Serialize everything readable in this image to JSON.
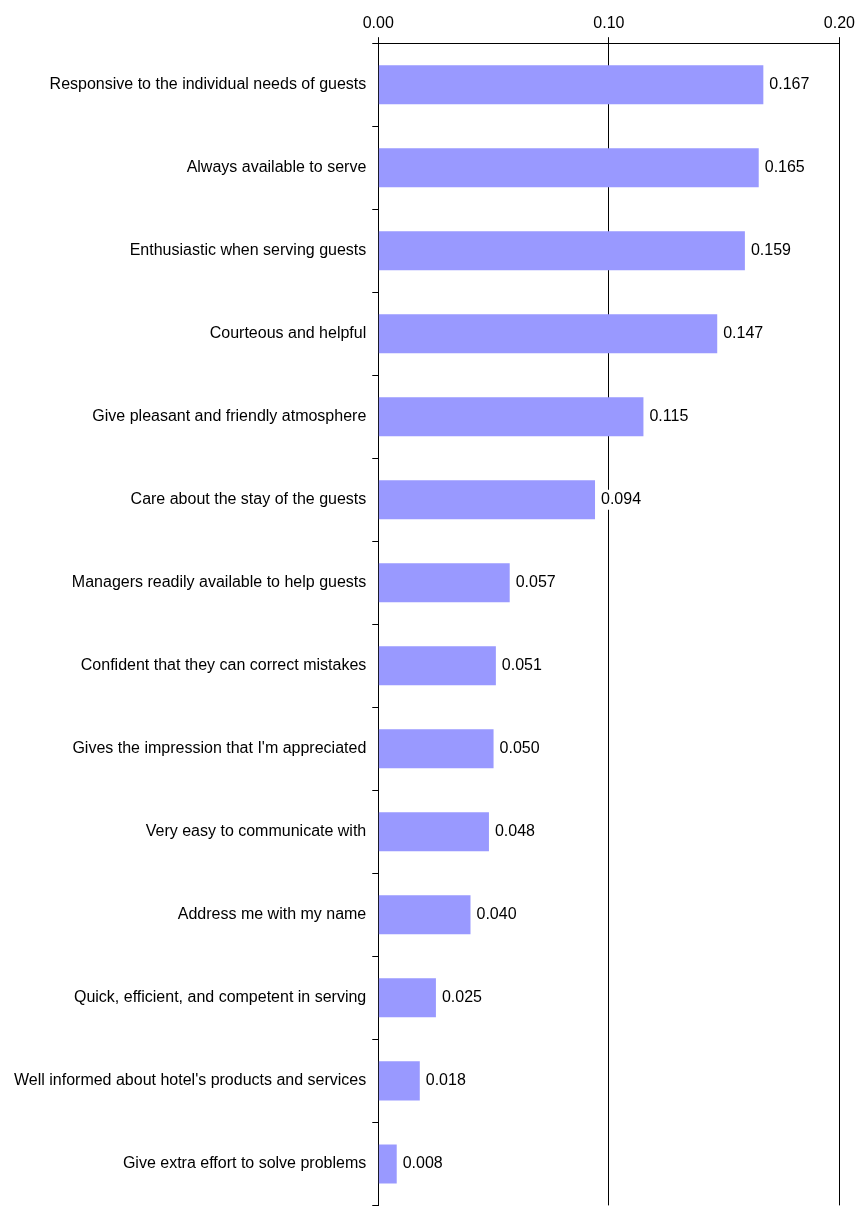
{
  "chart_data": {
    "type": "bar",
    "orientation": "horizontal",
    "categories": [
      "Responsive to the individual needs of guests",
      "Always available to serve",
      "Enthusiastic when serving guests",
      "Courteous and helpful",
      "Give pleasant and friendly atmosphere",
      "Care about the stay of the guests",
      "Managers readily available to help guests",
      "Confident that they can correct mistakes",
      "Gives the impression that I'm appreciated",
      "Very easy to communicate with",
      "Address me with my name",
      "Quick, efficient, and competent in serving",
      "Well informed about hotel's products and services",
      "Give extra effort to solve problems"
    ],
    "values": [
      0.167,
      0.165,
      0.159,
      0.147,
      0.115,
      0.094,
      0.057,
      0.051,
      0.05,
      0.048,
      0.04,
      0.025,
      0.018,
      0.008
    ],
    "value_labels": [
      "0.167",
      "0.165",
      "0.159",
      "0.147",
      "0.115",
      "0.094",
      "0.057",
      "0.051",
      "0.050",
      "0.048",
      "0.040",
      "0.025",
      "0.018",
      "0.008"
    ],
    "color": "#9999ff",
    "xlim": [
      0,
      0.2
    ],
    "xticks": [
      {
        "value": 0,
        "label": "0.00"
      },
      {
        "value": 0.1,
        "label": "0.10"
      },
      {
        "value": 0.2,
        "label": "0.20"
      }
    ],
    "grid": "x",
    "legend": false
  }
}
